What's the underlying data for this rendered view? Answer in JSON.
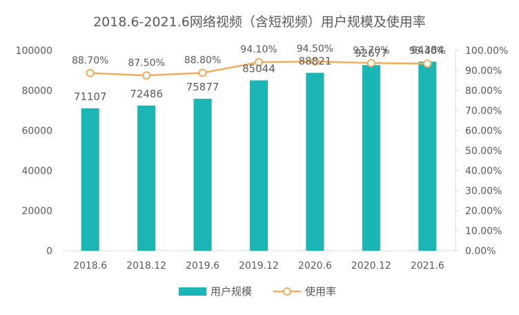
{
  "chart_data": {
    "type": "bar",
    "title": "2018.6-2021.6网络视频（含短视频）用户规模及使用率",
    "categories": [
      "2018.6",
      "2018.12",
      "2019.6",
      "2019.12",
      "2020.6",
      "2020.12",
      "2021.6"
    ],
    "series": [
      {
        "name": "用户规模",
        "type": "bar",
        "axis": "left",
        "values": [
          71107,
          72486,
          75877,
          85044,
          88821,
          92677,
          94384
        ],
        "labels": [
          "71107",
          "72486",
          "75877",
          "85044",
          "88821",
          "92677",
          "94384"
        ],
        "color": "#1CB5B5"
      },
      {
        "name": "使用率",
        "type": "line",
        "axis": "right",
        "values": [
          88.7,
          87.5,
          88.8,
          94.1,
          94.5,
          93.7,
          93.4
        ],
        "labels": [
          "88.70%",
          "87.50%",
          "88.80%",
          "94.10%",
          "94.50%",
          "93.70%",
          "93.40%"
        ],
        "color": "#F0AD5E"
      }
    ],
    "y_left": {
      "range": [
        0,
        100000
      ],
      "ticks": [
        0,
        20000,
        40000,
        60000,
        80000,
        100000
      ],
      "tick_labels": [
        "0",
        "20000",
        "40000",
        "60000",
        "80000",
        "100000"
      ]
    },
    "y_right": {
      "range": [
        0,
        100
      ],
      "ticks": [
        0,
        10,
        20,
        30,
        40,
        50,
        60,
        70,
        80,
        90,
        100
      ],
      "tick_labels": [
        "0.00%",
        "10.00%",
        "20.00%",
        "30.00%",
        "40.00%",
        "50.00%",
        "60.00%",
        "70.00%",
        "80.00%",
        "90.00%",
        "100.00%"
      ]
    },
    "grid": false,
    "legend": "bottom",
    "colors": {
      "text": "#595959",
      "axis": "#D9D9D9"
    }
  }
}
